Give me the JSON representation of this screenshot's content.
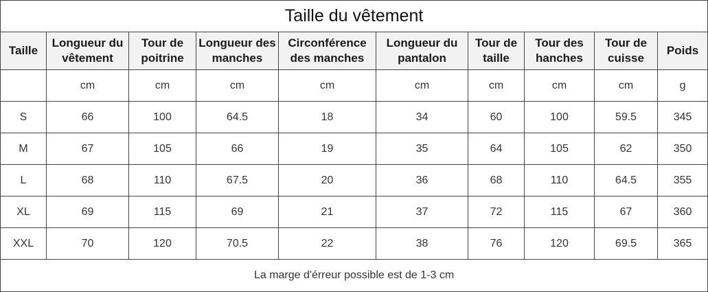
{
  "title": "Taille du vêtement",
  "headers": [
    "Taille",
    "Longueur du vêtement",
    "Tour de poitrine",
    "Longueur des manches",
    "Circonférence des manches",
    "Longueur du pantalon",
    "Tour de taille",
    "Tour des hanches",
    "Tour de cuisse",
    "Poids"
  ],
  "units": [
    "",
    "cm",
    "cm",
    "cm",
    "cm",
    "cm",
    "cm",
    "cm",
    "cm",
    "g"
  ],
  "rows": [
    [
      "S",
      "66",
      "100",
      "64.5",
      "18",
      "34",
      "60",
      "100",
      "59.5",
      "345"
    ],
    [
      "M",
      "67",
      "105",
      "66",
      "19",
      "35",
      "64",
      "105",
      "62",
      "350"
    ],
    [
      "L",
      "68",
      "110",
      "67.5",
      "20",
      "36",
      "68",
      "110",
      "64.5",
      "355"
    ],
    [
      "XL",
      "69",
      "115",
      "69",
      "21",
      "37",
      "72",
      "115",
      "67",
      "360"
    ],
    [
      "XXL",
      "70",
      "120",
      "70.5",
      "22",
      "38",
      "76",
      "120",
      "69.5",
      "365"
    ]
  ],
  "note": "La marge d'érreur possible est de 1-3 cm",
  "colors": {
    "border": "#444444",
    "header_bg": "#f2f2f2",
    "text": "#333333"
  }
}
